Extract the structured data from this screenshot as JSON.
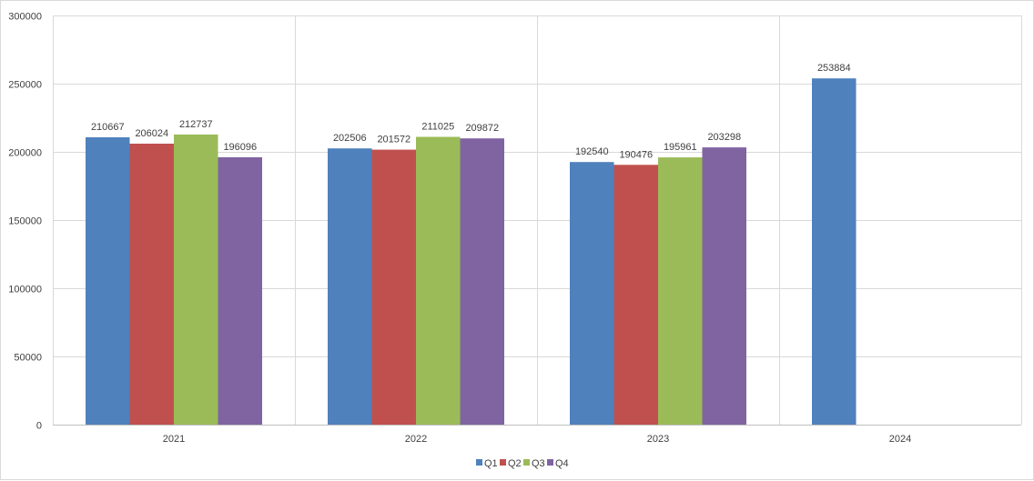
{
  "chart_data": {
    "type": "bar",
    "categories": [
      "2021",
      "2022",
      "2023",
      "2024"
    ],
    "series": [
      {
        "name": "Q1",
        "color": "#4F81BD",
        "values": [
          210667,
          202506,
          192540,
          253884
        ]
      },
      {
        "name": "Q2",
        "color": "#C0504D",
        "values": [
          206024,
          201572,
          190476,
          null
        ]
      },
      {
        "name": "Q3",
        "color": "#9BBB59",
        "values": [
          212737,
          211025,
          195961,
          null
        ]
      },
      {
        "name": "Q4",
        "color": "#8064A2",
        "values": [
          196096,
          209872,
          203298,
          null
        ]
      }
    ],
    "title": "",
    "xlabel": "",
    "ylabel": "",
    "ylim": [
      0,
      300000
    ],
    "yticks": [
      "0",
      "50000",
      "100000",
      "150000",
      "200000",
      "250000",
      "300000"
    ],
    "grid": true,
    "legend_position": "bottom",
    "data_labels": true
  }
}
